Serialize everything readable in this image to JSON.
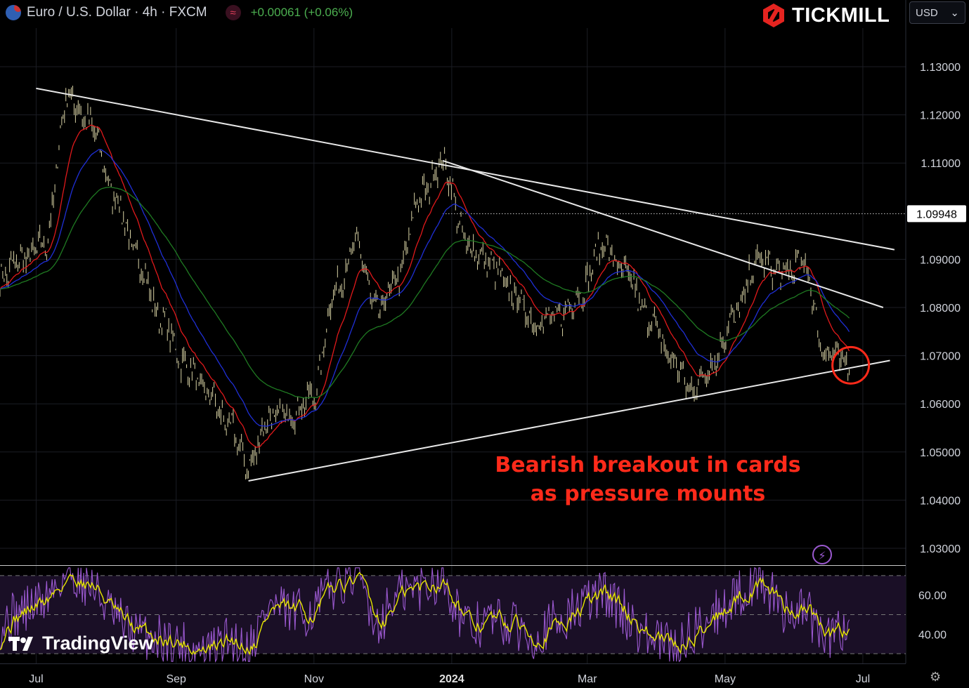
{
  "header": {
    "symbol": "Euro / U.S. Dollar · 4h · FXCM",
    "change": "+0.00061 (+0.06%)",
    "indicator_glyph": "≈"
  },
  "brand": {
    "name": "TICKMILL",
    "logo_icon": "tickmill-hexagon-logo"
  },
  "currency_select": {
    "value": "USD"
  },
  "watermark": {
    "name": "TradingView"
  },
  "annotation": {
    "lines": [
      "Bearish breakout in cards",
      "as pressure mounts"
    ],
    "color": "#ff2a1a"
  },
  "colors": {
    "background": "#000000",
    "candle": "#d8d2a4",
    "ema_fast": "#e0191b",
    "ema_mid": "#1f2fd6",
    "ema_slow": "#1f7a22",
    "trendline": "#e8e8e8",
    "rsi": "#9b59d0",
    "rsi_ma": "#e6e600",
    "highlight_circle": "#ff2a1a",
    "positive": "#4caf50"
  },
  "chart_data": {
    "type": "line",
    "title": "Euro / U.S. Dollar · 4h · FXCM",
    "instrument": "EURUSD",
    "timeframe": "4h",
    "x_ticks": [
      "Jul",
      "Sep",
      "Nov",
      "2024",
      "Mar",
      "May",
      "Jul"
    ],
    "y_ticks": [
      "1.13000",
      "1.12000",
      "1.11000",
      "1.09000",
      "1.08000",
      "1.07000",
      "1.06000",
      "1.05000",
      "1.04000",
      "1.03000"
    ],
    "ylim": [
      1.025,
      1.135
    ],
    "last_price_label": "1.09948",
    "last_price": 1.09948,
    "dates": [
      "2023-06-15",
      "2023-06-25",
      "2023-07-05",
      "2023-07-15",
      "2023-07-25",
      "2023-08-05",
      "2023-08-15",
      "2023-08-25",
      "2023-09-05",
      "2023-09-15",
      "2023-09-25",
      "2023-10-03",
      "2023-10-12",
      "2023-10-22",
      "2023-11-01",
      "2023-11-10",
      "2023-11-20",
      "2023-11-29",
      "2023-12-08",
      "2023-12-18",
      "2023-12-28",
      "2024-01-08",
      "2024-01-18",
      "2024-01-28",
      "2024-02-07",
      "2024-02-17",
      "2024-02-27",
      "2024-03-08",
      "2024-03-18",
      "2024-03-28",
      "2024-04-08",
      "2024-04-16",
      "2024-04-25",
      "2024-05-05",
      "2024-05-16",
      "2024-05-26",
      "2024-06-05",
      "2024-06-14",
      "2024-06-25"
    ],
    "series": [
      {
        "name": "EUR/USD",
        "values": [
          1.086,
          1.09,
          1.093,
          1.124,
          1.118,
          1.103,
          1.09,
          1.078,
          1.068,
          1.062,
          1.055,
          1.047,
          1.057,
          1.058,
          1.062,
          1.083,
          1.093,
          1.079,
          1.086,
          1.103,
          1.11,
          1.093,
          1.089,
          1.083,
          1.077,
          1.078,
          1.083,
          1.093,
          1.087,
          1.078,
          1.069,
          1.063,
          1.068,
          1.078,
          1.09,
          1.087,
          1.089,
          1.071,
          1.068
        ]
      }
    ],
    "overlays": {
      "ema_periods_note": "",
      "trendlines": [
        {
          "from": [
            "2023-07-01",
            1.1255
          ],
          "to": [
            "2024-07-15",
            1.092
          ]
        },
        {
          "from": [
            "2023-12-28",
            1.1105
          ],
          "to": [
            "2024-07-10",
            1.08
          ]
        },
        {
          "from": [
            "2023-10-03",
            1.044
          ],
          "to": [
            "2024-07-13",
            1.069
          ]
        },
        {
          "from": [
            "2024-06-25",
            1.068
          ],
          "to": [
            "2024-06-25",
            1.068
          ]
        }
      ],
      "highlight": {
        "date": "2024-06-25",
        "price": 1.068
      }
    },
    "rsi": {
      "y_ticks": [
        "60.00",
        "40.00"
      ],
      "levels": [
        70,
        50,
        30
      ],
      "ylim": [
        25,
        75
      ],
      "values": [
        45,
        52,
        58,
        72,
        66,
        48,
        40,
        38,
        34,
        30,
        38,
        32,
        55,
        50,
        52,
        66,
        72,
        45,
        60,
        64,
        70,
        42,
        48,
        44,
        40,
        46,
        54,
        62,
        50,
        38,
        33,
        40,
        50,
        58,
        70,
        52,
        54,
        36,
        46
      ]
    }
  }
}
